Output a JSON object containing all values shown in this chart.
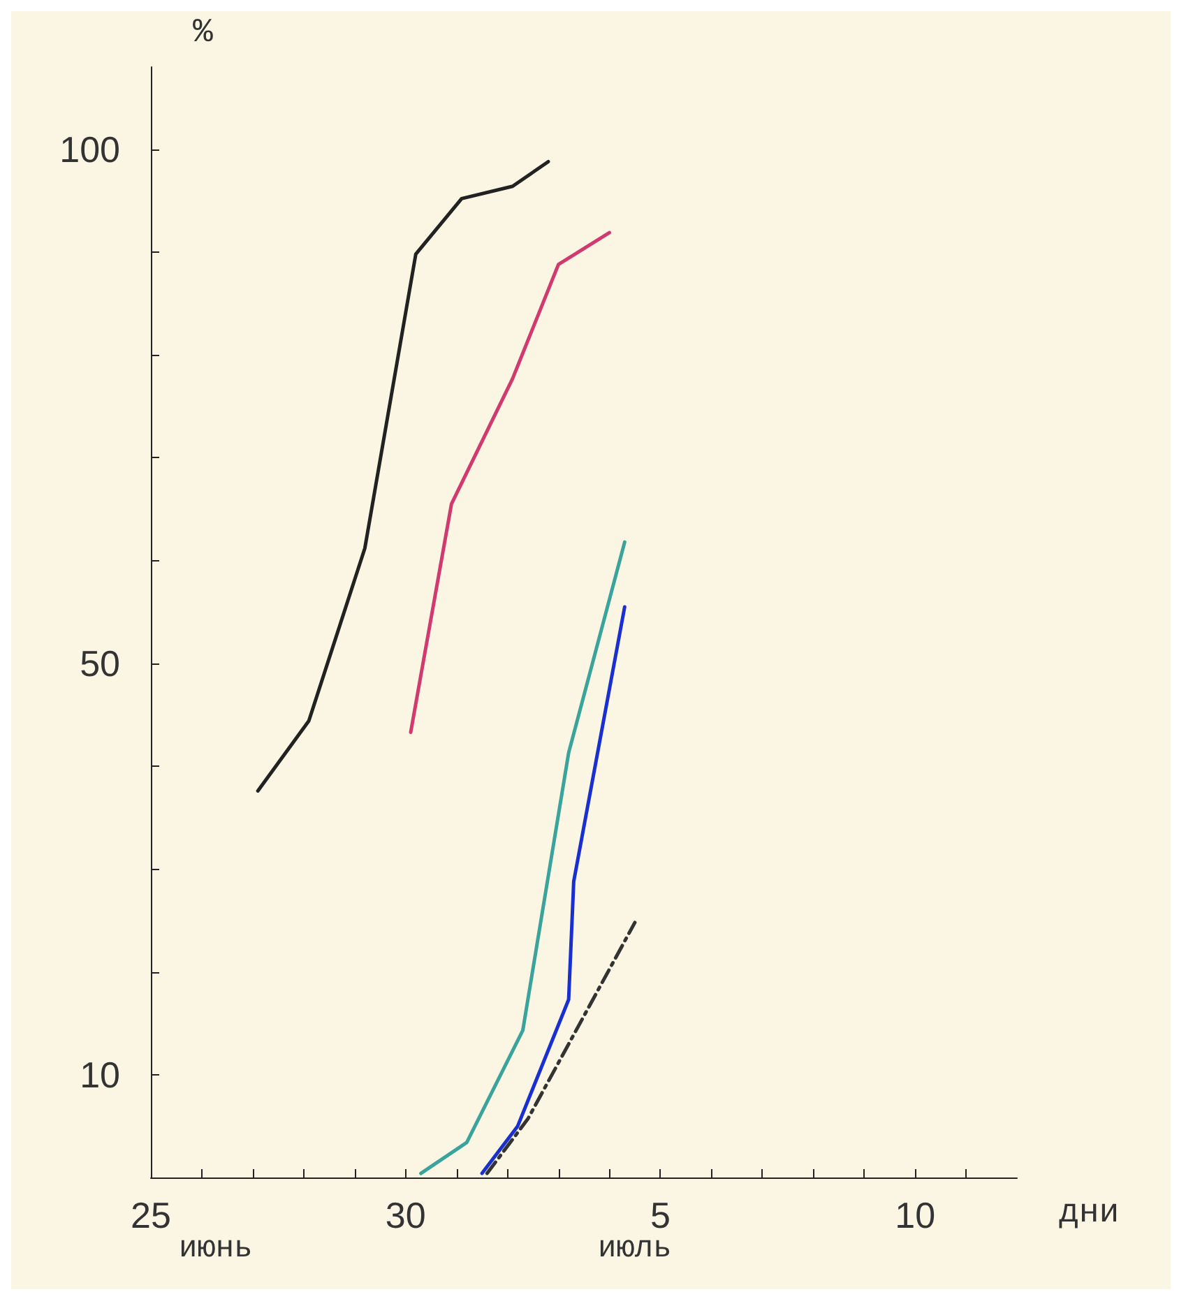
{
  "chart_data": {
    "type": "line",
    "xlabel": "дни",
    "ylabel": "%",
    "annotations": [
      "июнь",
      "июль"
    ],
    "xlim": [
      "--06-25",
      "--07-12"
    ],
    "xticks": [
      {
        "value": "--06-25",
        "label": "25"
      },
      {
        "value": "--06-26",
        "label": null
      },
      {
        "value": "--06-27",
        "label": null
      },
      {
        "value": "--06-28",
        "label": null
      },
      {
        "value": "--06-29",
        "label": null
      },
      {
        "value": "--06-30",
        "label": "30"
      },
      {
        "value": "--07-01",
        "label": null
      },
      {
        "value": "--07-02",
        "label": null
      },
      {
        "value": "--07-03",
        "label": null
      },
      {
        "value": "--07-04",
        "label": null
      },
      {
        "value": "--07-05",
        "label": "5"
      },
      {
        "value": "--07-06",
        "label": null
      },
      {
        "value": "--07-07",
        "label": null
      },
      {
        "value": "--07-08",
        "label": null
      },
      {
        "value": "--07-09",
        "label": null
      },
      {
        "value": "--07-10",
        "label": "10"
      },
      {
        "value": "--07-11",
        "label": null
      }
    ],
    "ylim": [
      0,
      108
    ],
    "yticks": [
      {
        "value": 0,
        "label": null
      },
      10,
      {
        "value": 20,
        "label": null
      },
      {
        "value": 30,
        "label": null
      },
      {
        "value": 40,
        "label": null
      },
      50,
      {
        "value": 60,
        "label": null
      },
      {
        "value": 70,
        "label": null
      },
      {
        "value": 80,
        "label": null
      },
      {
        "value": 90,
        "label": null
      },
      100
    ],
    "grid": false,
    "marker": "none",
    "line_style": "solid",
    "series": [
      {
        "color": "#222222",
        "x": [
          "--06-27T02:24",
          "--06-28T02:24",
          "--06-29T04:48",
          "--06-30T04:48",
          "--07-01T02:24",
          "--07-02T02:24",
          "--07-02T19:12"
        ],
        "values": [
          37.6,
          44.4,
          61.2,
          89.8,
          95.2,
          96.4,
          98.8
        ]
      },
      {
        "color": "#d03a6e",
        "x": [
          "--06-30T02:24",
          "--06-30T21:36",
          "--07-02T02:24",
          "--07-03",
          "--07-04"
        ],
        "values": [
          43.3,
          65.5,
          77.7,
          88.8,
          91.9
        ]
      },
      {
        "color": "#3aa39b",
        "x": [
          "--06-30T07:12",
          "--07-01T04:48",
          "--07-02T07:12",
          "--07-03T04:48",
          "--07-04T07:12"
        ],
        "values": [
          0.4,
          3.4,
          14.3,
          41.3,
          61.8
        ]
      },
      {
        "color": "#1a2fd0",
        "x": [
          "--07-01T12:00",
          "--07-02T04:48",
          "--07-03T04:48",
          "--07-03T07:12",
          "--07-04T07:12"
        ],
        "values": [
          0.4,
          5.0,
          17.3,
          28.8,
          55.5
        ]
      },
      {
        "color": "#333333",
        "line_style": "dashed",
        "x": [
          "--07-01T14:24",
          "--07-02T09:36",
          "--07-04T12:00"
        ],
        "values": [
          0.4,
          5.7,
          24.8
        ]
      }
    ]
  }
}
